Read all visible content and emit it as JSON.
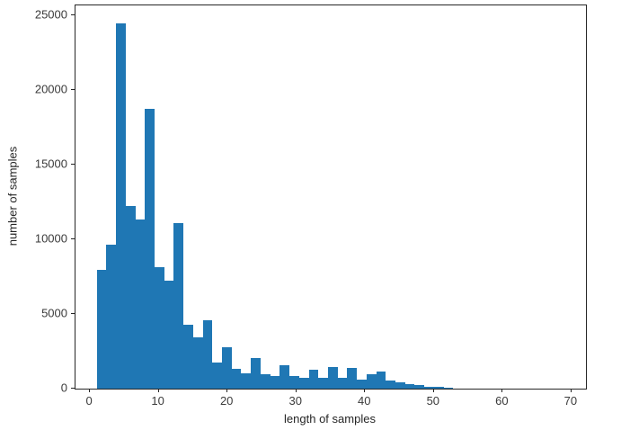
{
  "figure": {
    "background": "#ffffff",
    "bar_color": "#1f77b4",
    "spine_color": "#262626",
    "tick_label_color": "#3a3a3a"
  },
  "chart_data": {
    "type": "bar",
    "subtype": "histogram",
    "title": "",
    "xlabel": "length of samples",
    "ylabel": "number of samples",
    "bin_start": 1.0,
    "bin_width": 1.4,
    "values": [
      7950,
      9650,
      24450,
      12230,
      11330,
      18740,
      8130,
      7230,
      11100,
      4280,
      3430,
      4580,
      1750,
      2770,
      1330,
      1030,
      2070,
      970,
      860,
      1570,
      830,
      710,
      1270,
      720,
      1430,
      720,
      1370,
      620,
      950,
      1140,
      540,
      420,
      300,
      220,
      150,
      100,
      60
    ],
    "xlim": [
      -2.1,
      72.1
    ],
    "ylim": [
      0,
      25660
    ],
    "xticks": [
      0,
      10,
      20,
      30,
      40,
      50,
      60,
      70
    ],
    "yticks": [
      0,
      5000,
      10000,
      15000,
      20000,
      25000
    ],
    "grid": false,
    "legend": null
  }
}
